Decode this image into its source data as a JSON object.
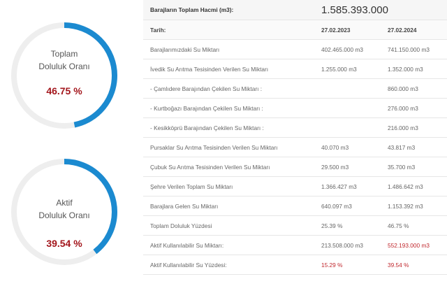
{
  "gauges": [
    {
      "label_lines": [
        "Toplam",
        "Doluluk Oranı"
      ],
      "percent": 46.75,
      "value_label": "46.75 %"
    },
    {
      "label_lines": [
        "Aktif",
        "Doluluk Oranı"
      ],
      "percent": 39.54,
      "value_label": "39.54 %"
    }
  ],
  "table": {
    "total_label": "Barajların Toplam Hacmi (m3):",
    "total_value": "1.585.393.000",
    "date_label": "Tarih:",
    "dates": [
      "27.02.2023",
      "27.02.2024"
    ],
    "rows": [
      [
        "Barajlarımızdaki Su Miktarı",
        "402.465.000 m3",
        "741.150.000 m3"
      ],
      [
        "İvedik Su Arıtma Tesisinden Verilen Su Miktarı",
        "1.255.000 m3",
        "1.352.000 m3"
      ],
      [
        "- Çamlıdere Barajından Çekilen Su Miktarı :",
        null,
        "860.000 m3"
      ],
      [
        "- Kurtboğazı Barajından Çekilen Su Miktarı :",
        null,
        "276.000 m3"
      ],
      [
        "- Kesikköprü Barajından Çekilen Su Miktarı :",
        null,
        "216.000 m3"
      ],
      [
        "Pursaklar Su Arıtma Tesisinden Verilen Su Miktarı",
        "40.070 m3",
        "43.817 m3"
      ],
      [
        "Çubuk Su Arıtma Tesisinden Verilen Su Miktarı",
        "29.500 m3",
        "35.700 m3"
      ],
      [
        "Şehre Verilen Toplam Su Miktarı",
        "1.366.427 m3",
        "1.486.642 m3"
      ],
      [
        "Barajlara Gelen Su Miktarı",
        "640.097 m3",
        "1.153.392 m3"
      ],
      [
        "Toplam Doluluk Yüzdesi",
        "25.39 %",
        "46.75 %"
      ],
      [
        "Aktif Kullanılabilir Su Miktarı:",
        "213.508.000 m3",
        "552.193.000 m3"
      ],
      [
        "Aktif Kullanılabilir Su Yüzdesi:",
        "15.29 %",
        "39.54 %"
      ]
    ]
  }
}
